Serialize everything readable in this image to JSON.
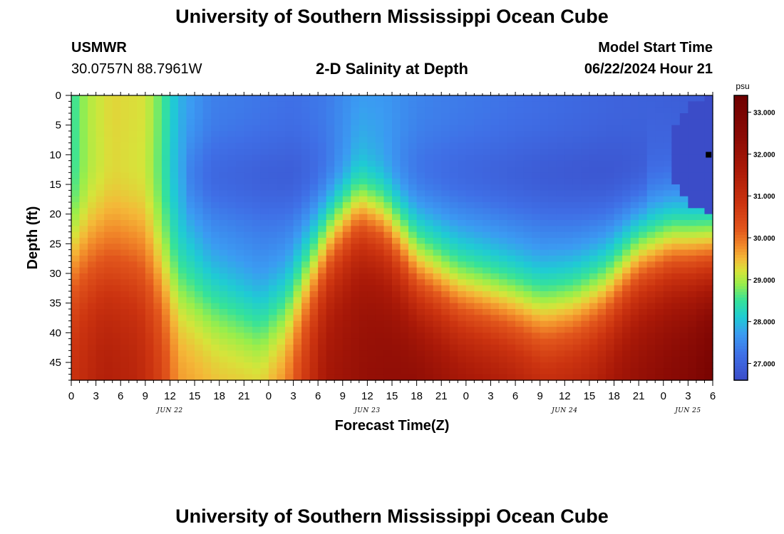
{
  "page": {
    "title_top": "University of Southern Mississippi Ocean Cube",
    "title_bottom": "University of Southern Mississippi Ocean Cube",
    "station": "USMWR",
    "location": "30.0757N  88.7961W",
    "model_start_label": "Model Start Time",
    "model_start_value": "06/22/2024 Hour 21",
    "subtitle": "2-D Salinity at Depth"
  },
  "chart_data": {
    "type": "heatmap",
    "title": "2-D Salinity at Depth",
    "xlabel": "Forecast Time(Z)",
    "ylabel": "Depth (ft)",
    "x_hours_range": [
      0,
      78
    ],
    "y_range": [
      0,
      48
    ],
    "x_ticks": [
      {
        "hour": 0,
        "label": "0"
      },
      {
        "hour": 3,
        "label": "3"
      },
      {
        "hour": 6,
        "label": "6"
      },
      {
        "hour": 9,
        "label": "9"
      },
      {
        "hour": 12,
        "label": "12"
      },
      {
        "hour": 15,
        "label": "15"
      },
      {
        "hour": 18,
        "label": "18"
      },
      {
        "hour": 21,
        "label": "21"
      },
      {
        "hour": 24,
        "label": "0"
      },
      {
        "hour": 27,
        "label": "3"
      },
      {
        "hour": 30,
        "label": "6"
      },
      {
        "hour": 33,
        "label": "9"
      },
      {
        "hour": 36,
        "label": "12"
      },
      {
        "hour": 39,
        "label": "15"
      },
      {
        "hour": 42,
        "label": "18"
      },
      {
        "hour": 45,
        "label": "21"
      },
      {
        "hour": 48,
        "label": "0"
      },
      {
        "hour": 51,
        "label": "3"
      },
      {
        "hour": 54,
        "label": "6"
      },
      {
        "hour": 57,
        "label": "9"
      },
      {
        "hour": 60,
        "label": "12"
      },
      {
        "hour": 63,
        "label": "15"
      },
      {
        "hour": 66,
        "label": "18"
      },
      {
        "hour": 69,
        "label": "21"
      },
      {
        "hour": 72,
        "label": "0"
      },
      {
        "hour": 75,
        "label": "3"
      },
      {
        "hour": 78,
        "label": "6"
      }
    ],
    "date_labels": [
      {
        "hour": 12,
        "label": "JUN 22"
      },
      {
        "hour": 36,
        "label": "JUN 23"
      },
      {
        "hour": 60,
        "label": "JUN 24"
      },
      {
        "hour": 75,
        "label": "JUN 25"
      }
    ],
    "y_ticks": [
      0,
      5,
      10,
      15,
      20,
      25,
      30,
      35,
      40,
      45
    ],
    "colorbar": {
      "unit": "psu",
      "range": [
        26.6,
        33.4
      ],
      "ticks": [
        {
          "value": 27.0,
          "label": "27.000"
        },
        {
          "value": 28.0,
          "label": "28.000"
        },
        {
          "value": 29.0,
          "label": "29.000"
        },
        {
          "value": 30.0,
          "label": "30.000"
        },
        {
          "value": 31.0,
          "label": "31.000"
        },
        {
          "value": 32.0,
          "label": "32.000"
        },
        {
          "value": 33.0,
          "label": "33.000"
        }
      ]
    },
    "colormap": [
      [
        26.6,
        "#3b4cc8"
      ],
      [
        27.2,
        "#3f6fe6"
      ],
      [
        27.7,
        "#3b9bf2"
      ],
      [
        28.1,
        "#1fcbd4"
      ],
      [
        28.5,
        "#35e29a"
      ],
      [
        28.9,
        "#9aee4a"
      ],
      [
        29.2,
        "#d6e43a"
      ],
      [
        29.5,
        "#f4b938"
      ],
      [
        29.8,
        "#f28a2a"
      ],
      [
        30.2,
        "#e2561c"
      ],
      [
        30.8,
        "#cc3410"
      ],
      [
        31.6,
        "#ab1a08"
      ],
      [
        32.4,
        "#8b0b05"
      ],
      [
        33.4,
        "#6e0000"
      ]
    ],
    "grid_columns": 78,
    "grid_rows": 48,
    "surface_profile": [
      [
        0,
        28.4
      ],
      [
        2,
        29.0
      ],
      [
        5,
        29.3
      ],
      [
        9,
        29.2
      ],
      [
        11,
        28.6
      ],
      [
        13,
        27.9
      ],
      [
        17,
        27.4
      ],
      [
        22,
        27.3
      ],
      [
        27,
        27.2
      ],
      [
        31,
        27.3
      ],
      [
        35,
        27.6
      ],
      [
        38,
        27.6
      ],
      [
        43,
        27.4
      ],
      [
        49,
        27.3
      ],
      [
        55,
        27.2
      ],
      [
        61,
        27.1
      ],
      [
        66,
        27.0
      ],
      [
        72,
        26.9
      ],
      [
        78,
        26.8
      ]
    ],
    "pycnocline_depth": [
      [
        0,
        28.5
      ],
      [
        6,
        29.0
      ],
      [
        9,
        29.5
      ],
      [
        12,
        32.0
      ],
      [
        18,
        35.0
      ],
      [
        23,
        38.0
      ],
      [
        26,
        35.5
      ],
      [
        29,
        30.0
      ],
      [
        32,
        24.0
      ],
      [
        35,
        20.0
      ],
      [
        38,
        22.5
      ],
      [
        42,
        30.0
      ],
      [
        47,
        33.5
      ],
      [
        52,
        35.0
      ],
      [
        57,
        36.5
      ],
      [
        61,
        35.5
      ],
      [
        65,
        33.0
      ],
      [
        69,
        28.0
      ],
      [
        73,
        26.0
      ],
      [
        78,
        26.5
      ]
    ],
    "deep_profile": [
      [
        0,
        30.9
      ],
      [
        4,
        31.5
      ],
      [
        8,
        31.3
      ],
      [
        11,
        30.6
      ],
      [
        13,
        29.8
      ],
      [
        18,
        29.6
      ],
      [
        23,
        29.6
      ],
      [
        26,
        30.0
      ],
      [
        28,
        30.7
      ],
      [
        31,
        31.8
      ],
      [
        36,
        32.2
      ],
      [
        42,
        32.4
      ],
      [
        48,
        32.0
      ],
      [
        53,
        31.8
      ],
      [
        58,
        31.4
      ],
      [
        63,
        31.6
      ],
      [
        67,
        32.1
      ],
      [
        71,
        32.4
      ],
      [
        75,
        32.7
      ],
      [
        78,
        33.2
      ]
    ],
    "hotspot": {
      "hour": 77.5,
      "depth": 10,
      "value": 33.4
    }
  }
}
